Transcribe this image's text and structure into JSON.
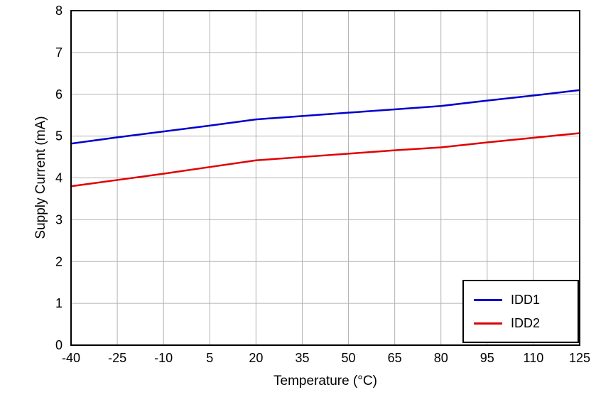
{
  "chart_data": {
    "type": "line",
    "title": "",
    "xlabel": "Temperature (°C)",
    "ylabel": "Supply Current (mA)",
    "xlim": [
      -40,
      125
    ],
    "ylim": [
      0,
      8
    ],
    "x_ticks": [
      -40,
      -25,
      -10,
      5,
      20,
      35,
      50,
      65,
      80,
      95,
      110,
      125
    ],
    "y_ticks": [
      0,
      1,
      2,
      3,
      4,
      5,
      6,
      7,
      8
    ],
    "grid": true,
    "grid_color": "#b3b3b3",
    "axis_color": "#000000",
    "legend_position": "bottom-right",
    "x": [
      -40,
      -25,
      -10,
      5,
      20,
      35,
      50,
      65,
      80,
      95,
      110,
      125
    ],
    "series": [
      {
        "name": "IDD1",
        "color": "#0000cc",
        "values": [
          4.82,
          4.97,
          5.11,
          5.25,
          5.4,
          5.48,
          5.56,
          5.64,
          5.72,
          5.85,
          5.97,
          6.1
        ]
      },
      {
        "name": "IDD2",
        "color": "#e00000",
        "values": [
          3.8,
          3.95,
          4.1,
          4.26,
          4.42,
          4.5,
          4.58,
          4.66,
          4.73,
          4.85,
          4.96,
          5.07
        ]
      }
    ]
  }
}
